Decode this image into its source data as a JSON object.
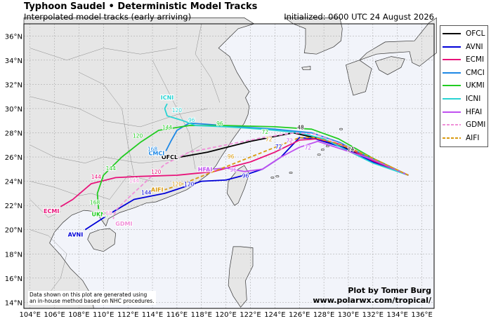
{
  "header": {
    "title": "Typhoon Saudel • Deterministic Model Tracks",
    "subtitle": "Interpolated model tracks (early arriving)",
    "initialized": "Initialized: 0600 UTC 24 August 2026"
  },
  "axes": {
    "lon_ticks": [
      "104°E",
      "106°E",
      "108°E",
      "110°E",
      "112°E",
      "114°E",
      "116°E",
      "118°E",
      "120°E",
      "122°E",
      "124°E",
      "126°E",
      "128°E",
      "130°E",
      "132°E",
      "134°E",
      "136°E"
    ],
    "lat_ticks": [
      "14°N",
      "16°N",
      "18°N",
      "20°N",
      "22°N",
      "24°N",
      "26°N",
      "28°N",
      "30°N",
      "32°N",
      "34°N",
      "36°N"
    ]
  },
  "legend": [
    {
      "name": "OFCL",
      "color": "#000000",
      "dash": false
    },
    {
      "name": "AVNI",
      "color": "#0000d8",
      "dash": false
    },
    {
      "name": "ECMI",
      "color": "#e8137a",
      "dash": false
    },
    {
      "name": "CMCI",
      "color": "#1e88e5",
      "dash": false
    },
    {
      "name": "UKMI",
      "color": "#22cc22",
      "dash": false
    },
    {
      "name": "ICNI",
      "color": "#29d3d3",
      "dash": false
    },
    {
      "name": "HFAI",
      "color": "#c050f0",
      "dash": false
    },
    {
      "name": "GDMI",
      "color": "#f090d8",
      "dash": true
    },
    {
      "name": "AIFI",
      "color": "#d99a10",
      "dash": true
    }
  ],
  "tracks": [
    {
      "name": "OFCL",
      "end_label": "OFCL",
      "end_hour": "",
      "color": "#000000",
      "dash": false,
      "points": [
        [
          134.9,
          24.5
        ],
        [
          132.0,
          25.8
        ],
        [
          129.6,
          26.8
        ],
        [
          127.2,
          27.6
        ],
        [
          125.5,
          28.0
        ],
        [
          122.0,
          27.3
        ],
        [
          118.5,
          26.4
        ],
        [
          116.3,
          26.0
        ]
      ]
    },
    {
      "name": "AVNI",
      "end_label": "AVNI",
      "end_hour": "",
      "color": "#0000d8",
      "dash": false,
      "points": [
        [
          134.9,
          24.5
        ],
        [
          132.0,
          25.6
        ],
        [
          129.5,
          26.8
        ],
        [
          127.3,
          27.5
        ],
        [
          126.0,
          27.6
        ],
        [
          124.5,
          26.0
        ],
        [
          123.0,
          25.0
        ],
        [
          121.5,
          24.5
        ],
        [
          120.0,
          24.1
        ],
        [
          118.0,
          24.0
        ],
        [
          115.0,
          23.0
        ],
        [
          112.5,
          22.5
        ],
        [
          110.5,
          21.3
        ],
        [
          108.5,
          20.0
        ]
      ]
    },
    {
      "name": "ECMI",
      "end_label": "ECMI",
      "end_hour": "",
      "color": "#e8137a",
      "dash": false,
      "points": [
        [
          134.9,
          24.5
        ],
        [
          132.0,
          25.7
        ],
        [
          129.5,
          27.0
        ],
        [
          127.5,
          27.5
        ],
        [
          126.0,
          27.4
        ],
        [
          124.0,
          26.4
        ],
        [
          122.0,
          25.6
        ],
        [
          119.0,
          24.8
        ],
        [
          116.0,
          24.5
        ],
        [
          113.0,
          24.4
        ],
        [
          111.0,
          24.3
        ],
        [
          109.0,
          23.8
        ],
        [
          107.5,
          22.5
        ],
        [
          106.5,
          21.9
        ]
      ]
    },
    {
      "name": "CMCI",
      "end_label": "CMCI",
      "end_hour": "168",
      "color": "#1e88e5",
      "dash": false,
      "points": [
        [
          134.9,
          24.5
        ],
        [
          132.0,
          25.8
        ],
        [
          129.3,
          27.2
        ],
        [
          127.0,
          28.0
        ],
        [
          124.0,
          28.3
        ],
        [
          121.0,
          28.5
        ],
        [
          118.5,
          28.7
        ],
        [
          117.0,
          28.8
        ],
        [
          116.0,
          28.2
        ],
        [
          115.5,
          27.3
        ],
        [
          115.1,
          26.5
        ]
      ]
    },
    {
      "name": "UKMI",
      "end_label": "UKMI",
      "end_hour": "168",
      "color": "#22cc22",
      "dash": false,
      "points": [
        [
          134.9,
          24.5
        ],
        [
          132.0,
          25.9
        ],
        [
          129.2,
          27.5
        ],
        [
          127.0,
          28.3
        ],
        [
          124.0,
          28.5
        ],
        [
          120.0,
          28.6
        ],
        [
          117.0,
          28.6
        ],
        [
          114.5,
          28.2
        ],
        [
          113.0,
          27.2
        ],
        [
          111.5,
          26.0
        ],
        [
          110.0,
          24.5
        ],
        [
          109.5,
          23.0
        ],
        [
          109.6,
          21.7
        ]
      ]
    },
    {
      "name": "ICNI",
      "end_label": "ICNI",
      "end_hour": "120",
      "color": "#29d3d3",
      "dash": false,
      "points": [
        [
          134.9,
          24.5
        ],
        [
          132.0,
          25.5
        ],
        [
          129.8,
          26.6
        ],
        [
          128.0,
          27.5
        ],
        [
          126.0,
          28.0
        ],
        [
          123.0,
          28.3
        ],
        [
          120.0,
          28.5
        ],
        [
          117.5,
          28.6
        ],
        [
          116.5,
          29.0
        ],
        [
          115.2,
          29.4
        ],
        [
          115.0,
          30.0
        ],
        [
          115.2,
          30.4
        ]
      ]
    },
    {
      "name": "HFAI",
      "end_label": "HFAI",
      "end_hour": "",
      "color": "#c050f0",
      "dash": false,
      "points": [
        [
          134.9,
          24.5
        ],
        [
          132.0,
          25.8
        ],
        [
          129.6,
          26.6
        ],
        [
          127.5,
          27.3
        ],
        [
          126.0,
          26.8
        ],
        [
          124.5,
          26.0
        ],
        [
          123.0,
          25.0
        ],
        [
          121.5,
          24.8
        ],
        [
          120.0,
          25.1
        ],
        [
          119.0,
          25.0
        ]
      ]
    },
    {
      "name": "GDMI",
      "end_label": "GDMI",
      "end_hour": "168",
      "color": "#f090d8",
      "dash": true,
      "points": [
        [
          134.9,
          24.5
        ],
        [
          132.0,
          25.9
        ],
        [
          129.6,
          27.0
        ],
        [
          127.3,
          27.9
        ],
        [
          125.5,
          28.0
        ],
        [
          123.0,
          27.6
        ],
        [
          120.0,
          27.0
        ],
        [
          117.0,
          26.4
        ],
        [
          115.0,
          25.4
        ],
        [
          113.5,
          24.0
        ],
        [
          112.0,
          22.6
        ],
        [
          111.0,
          21.6
        ],
        [
          110.8,
          20.9
        ]
      ]
    },
    {
      "name": "AIFI",
      "end_label": "AIFI",
      "end_hour": "",
      "color": "#d99a10",
      "dash": true,
      "points": [
        [
          134.9,
          24.5
        ],
        [
          132.0,
          25.9
        ],
        [
          129.5,
          27.0
        ],
        [
          127.3,
          27.6
        ],
        [
          126.0,
          27.6
        ],
        [
          123.5,
          26.6
        ],
        [
          121.0,
          25.6
        ],
        [
          118.5,
          24.6
        ],
        [
          116.5,
          23.8
        ],
        [
          115.0,
          23.3
        ]
      ]
    }
  ],
  "tick_labels": [
    {
      "text": "48",
      "lon": 126.1,
      "lat": 28.3,
      "color": "#000000"
    },
    {
      "text": "72",
      "lon": 123.2,
      "lat": 27.9,
      "color": "#22cc22"
    },
    {
      "text": "96",
      "lon": 119.5,
      "lat": 28.6,
      "color": "#22cc22"
    },
    {
      "text": "96",
      "lon": 117.2,
      "lat": 28.9,
      "color": "#29d3d3"
    },
    {
      "text": "120",
      "lon": 116.0,
      "lat": 29.7,
      "color": "#29d3d3"
    },
    {
      "text": "168",
      "lon": 114.0,
      "lat": 26.5,
      "color": "#1e88e5"
    },
    {
      "text": "120",
      "lon": 112.8,
      "lat": 27.6,
      "color": "#22cc22"
    },
    {
      "text": "144",
      "lon": 115.2,
      "lat": 28.3,
      "color": "#22cc22"
    },
    {
      "text": "144",
      "lon": 110.6,
      "lat": 24.9,
      "color": "#22cc22"
    },
    {
      "text": "168",
      "lon": 109.3,
      "lat": 22.1,
      "color": "#22cc22"
    },
    {
      "text": "144",
      "lon": 109.4,
      "lat": 24.2,
      "color": "#e8137a"
    },
    {
      "text": "120",
      "lon": 114.3,
      "lat": 24.6,
      "color": "#e8137a"
    },
    {
      "text": "144",
      "lon": 112.5,
      "lat": 23.9,
      "color": "#f090d8"
    },
    {
      "text": "168",
      "lon": 110.3,
      "lat": 21.2,
      "color": "#f090d8"
    },
    {
      "text": "72",
      "lon": 124.3,
      "lat": 26.7,
      "color": "#0000d8"
    },
    {
      "text": "96",
      "lon": 121.6,
      "lat": 24.3,
      "color": "#0000d8"
    },
    {
      "text": "120",
      "lon": 117.0,
      "lat": 23.6,
      "color": "#0000d8"
    },
    {
      "text": "144",
      "lon": 113.5,
      "lat": 22.9,
      "color": "#0000d8"
    },
    {
      "text": "72",
      "lon": 125.2,
      "lat": 27.2,
      "color": "#c050f0"
    },
    {
      "text": "96",
      "lon": 120.6,
      "lat": 24.8,
      "color": "#c050f0"
    },
    {
      "text": "72",
      "lon": 123.5,
      "lat": 27.3,
      "color": "#d99a10"
    },
    {
      "text": "96",
      "lon": 120.4,
      "lat": 25.9,
      "color": "#d99a10"
    },
    {
      "text": "120",
      "lon": 116.0,
      "lat": 23.6,
      "color": "#d99a10"
    },
    {
      "text": "72",
      "lon": 126.7,
      "lat": 26.6,
      "color": "#c050f0"
    },
    {
      "text": "24",
      "lon": 130.2,
      "lat": 26.5,
      "color": "#000000"
    }
  ],
  "footnote": {
    "line1": "Data shown on this plot are generated using",
    "line2": "an in-house method based on NHC procedures."
  },
  "credits": {
    "line1": "Plot by Tomer Burg",
    "line2": "www.polarwx.com/tropical/"
  },
  "colors": {
    "land": "#e6e6e6",
    "sea": "#f2f4fa",
    "grid": "#a0a0a0",
    "coast": "#333333"
  }
}
